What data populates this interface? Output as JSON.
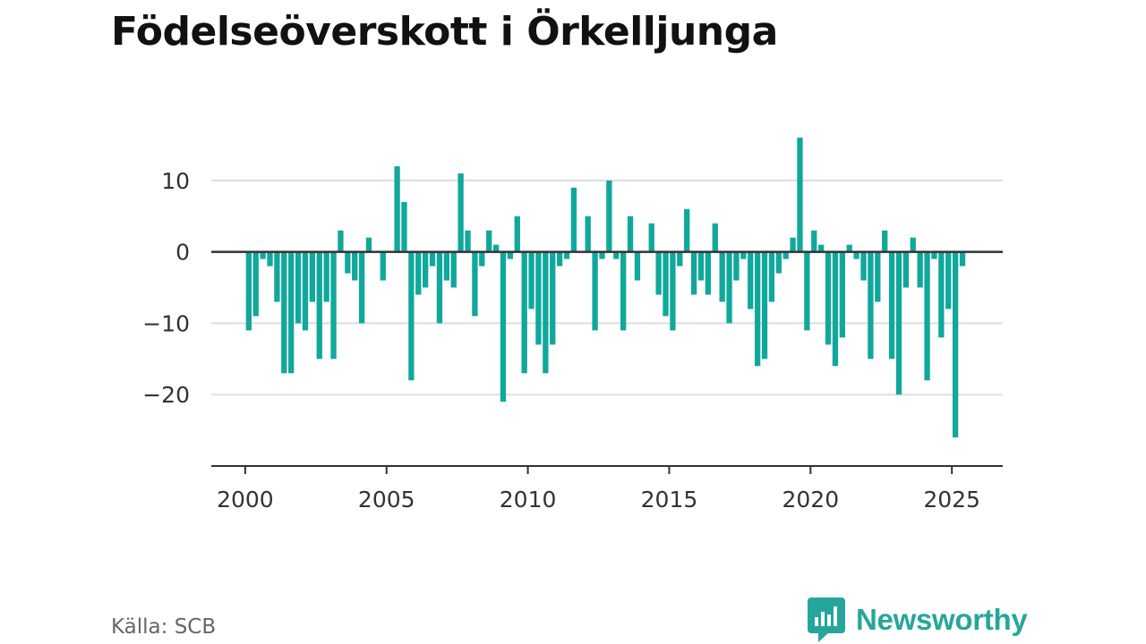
{
  "title": "Födelseöverskott i Örkelljunga",
  "source": "Källa: SCB",
  "brand": {
    "name": "Newsworthy",
    "color": "#26a69a",
    "icon": "newsworthy-logo-icon"
  },
  "colors": {
    "bar": "#11a89c",
    "zero_line": "#333333",
    "grid": "#dddddd",
    "axis": "#333333"
  },
  "chart_data": {
    "type": "bar",
    "title": "Födelseöverskott i Örkelljunga",
    "xlabel": "",
    "ylabel": "",
    "x_ticks": [
      "2000",
      "2005",
      "2010",
      "2015",
      "2020",
      "2025"
    ],
    "y_ticks": [
      "10",
      "0",
      "−10",
      "−20"
    ],
    "xlim": [
      1998.8,
      2026.8
    ],
    "ylim": [
      -30,
      20
    ],
    "grid": true,
    "bar_width_years": 0.2,
    "x": [
      2000.125,
      2000.375,
      2000.625,
      2000.875,
      2001.125,
      2001.375,
      2001.625,
      2001.875,
      2002.125,
      2002.375,
      2002.625,
      2002.875,
      2003.125,
      2003.375,
      2003.625,
      2003.875,
      2004.125,
      2004.375,
      2004.625,
      2004.875,
      2005.125,
      2005.375,
      2005.625,
      2005.875,
      2006.125,
      2006.375,
      2006.625,
      2006.875,
      2007.125,
      2007.375,
      2007.625,
      2007.875,
      2008.125,
      2008.375,
      2008.625,
      2008.875,
      2009.125,
      2009.375,
      2009.625,
      2009.875,
      2010.125,
      2010.375,
      2010.625,
      2010.875,
      2011.125,
      2011.375,
      2011.625,
      2011.875,
      2012.125,
      2012.375,
      2012.625,
      2012.875,
      2013.125,
      2013.375,
      2013.625,
      2013.875,
      2014.125,
      2014.375,
      2014.625,
      2014.875,
      2015.125,
      2015.375,
      2015.625,
      2015.875,
      2016.125,
      2016.375,
      2016.625,
      2016.875,
      2017.125,
      2017.375,
      2017.625,
      2017.875,
      2018.125,
      2018.375,
      2018.625,
      2018.875,
      2019.125,
      2019.375,
      2019.625,
      2019.875,
      2020.125,
      2020.375,
      2020.625,
      2020.875,
      2021.125,
      2021.375,
      2021.625,
      2021.875,
      2022.125,
      2022.375,
      2022.625,
      2022.875,
      2023.125,
      2023.375,
      2023.625,
      2023.875,
      2024.125,
      2024.375,
      2024.625,
      2024.875,
      2025.125,
      2025.375
    ],
    "values": [
      -11,
      -9,
      -1,
      -2,
      -7,
      -17,
      -17,
      -10,
      -11,
      -7,
      -15,
      -7,
      -15,
      3,
      -3,
      -4,
      -10,
      2,
      0,
      -4,
      0,
      12,
      7,
      -18,
      -6,
      -5,
      -2,
      -10,
      -4,
      -5,
      11,
      3,
      -9,
      -2,
      3,
      1,
      -21,
      -1,
      5,
      -17,
      -8,
      -13,
      -17,
      -13,
      -2,
      -1,
      9,
      0,
      5,
      -11,
      -1,
      10,
      -1,
      -11,
      5,
      -4,
      0,
      4,
      -6,
      -9,
      -11,
      -2,
      6,
      -6,
      -4,
      -6,
      4,
      -7,
      -10,
      -4,
      -1,
      -8,
      -16,
      -15,
      -7,
      -3,
      -1,
      2,
      16,
      -11,
      3,
      1,
      -13,
      -16,
      -12,
      1,
      -1,
      -4,
      -15,
      -7,
      3,
      -15,
      -20,
      -5,
      2,
      -5,
      -18,
      -1,
      -12,
      -8,
      -26,
      -2
    ]
  }
}
